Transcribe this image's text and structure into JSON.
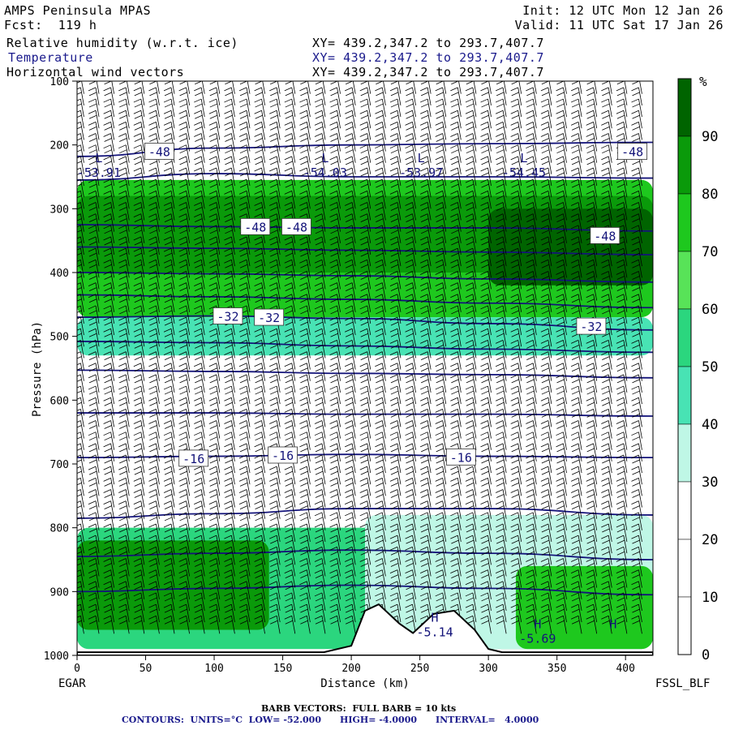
{
  "header": {
    "model": "AMPS Peninsula MPAS",
    "fcst": "Fcst:  119 h",
    "init": "Init: 12 UTC Mon 12 Jan 26",
    "valid": "Valid: 11 UTC Sat 17 Jan 26",
    "fields": [
      {
        "label": "Relative humidity (w.r.t. ice)",
        "xy": "XY= 439.2,347.2 to 293.7,407.7"
      },
      {
        "label": "Temperature",
        "xy": "XY= 439.2,347.2 to 293.7,407.7"
      },
      {
        "label": "Horizontal wind vectors",
        "xy": "XY= 439.2,347.2 to 293.7,407.7"
      }
    ]
  },
  "footer": {
    "left_station": "EGAR",
    "right_station": "FSSL_BLF",
    "barb_note": "BARB VECTORS:  FULL BARB = 10 kts",
    "contour_note": "CONTOURS:  UNITS=°C  LOW= -52.000      HIGH= -4.0000      INTERVAL=   4.0000"
  },
  "colorbar": {
    "unit_label": "%",
    "ticks": [
      "90",
      "80",
      "70",
      "60",
      "50",
      "40",
      "30",
      "20",
      "10",
      "0"
    ],
    "bands": [
      {
        "from": 90,
        "to": 100,
        "color": "#006400"
      },
      {
        "from": 80,
        "to": 90,
        "color": "#0a9a0a"
      },
      {
        "from": 70,
        "to": 80,
        "color": "#1ec81e"
      },
      {
        "from": 60,
        "to": 70,
        "color": "#58e358"
      },
      {
        "from": 50,
        "to": 60,
        "color": "#2bd67e"
      },
      {
        "from": 40,
        "to": 50,
        "color": "#48e3b4"
      },
      {
        "from": 30,
        "to": 40,
        "color": "#bff7e6"
      },
      {
        "from": 20,
        "to": 30,
        "color": "#ffffff"
      },
      {
        "from": 10,
        "to": 20,
        "color": "#ffffff"
      },
      {
        "from": 0,
        "to": 10,
        "color": "#ffffff"
      }
    ]
  },
  "chart_data": {
    "type": "heatmap",
    "title": "AMPS Peninsula MPAS",
    "xlabel": "Distance (km)",
    "ylabel": "Pressure (hPa)",
    "xlim": [
      0,
      420
    ],
    "ylim": [
      1000,
      100
    ],
    "x_ticks": [
      0,
      50,
      100,
      150,
      200,
      250,
      300,
      350,
      400
    ],
    "y_ticks": [
      100,
      200,
      300,
      400,
      500,
      600,
      700,
      800,
      900,
      1000
    ],
    "colors": {
      "contour": "#14147a",
      "barb": "#000000",
      "terrain": "#000000"
    },
    "rh_layers": [
      {
        "p_top": 255,
        "p_bot": 470,
        "rh": 70
      },
      {
        "p_top": 280,
        "p_bot": 400,
        "rh": 80
      },
      {
        "p_top": 300,
        "p_bot": 420,
        "rh": 90,
        "x_from": 300,
        "x_to": 420
      },
      {
        "p_top": 470,
        "p_bot": 530,
        "rh": 45
      },
      {
        "p_top": 800,
        "p_bot": 990,
        "rh": 55
      },
      {
        "p_top": 820,
        "p_bot": 960,
        "rh": 80,
        "x_from": 0,
        "x_to": 140
      },
      {
        "p_top": 780,
        "p_bot": 990,
        "rh": 35,
        "x_from": 210,
        "x_to": 420
      },
      {
        "p_top": 860,
        "p_bot": 990,
        "rh": 75,
        "x_from": 320,
        "x_to": 420
      }
    ],
    "temperature_contours": [
      {
        "value": -48,
        "points": [
          [
            0,
            218
          ],
          [
            100,
            205
          ],
          [
            200,
            200
          ],
          [
            300,
            198
          ],
          [
            420,
            196
          ]
        ]
      },
      {
        "value": -52,
        "points": [
          [
            0,
            255
          ],
          [
            100,
            245
          ],
          [
            200,
            250
          ],
          [
            300,
            250
          ],
          [
            420,
            252
          ]
        ]
      },
      {
        "value": -48,
        "points": [
          [
            0,
            325
          ],
          [
            100,
            328
          ],
          [
            200,
            330
          ],
          [
            300,
            330
          ],
          [
            420,
            335
          ]
        ]
      },
      {
        "value": -44,
        "points": [
          [
            0,
            360
          ],
          [
            100,
            362
          ],
          [
            200,
            365
          ],
          [
            300,
            368
          ],
          [
            420,
            372
          ]
        ]
      },
      {
        "value": -40,
        "points": [
          [
            0,
            400
          ],
          [
            100,
            402
          ],
          [
            200,
            405
          ],
          [
            300,
            410
          ],
          [
            420,
            415
          ]
        ]
      },
      {
        "value": -36,
        "points": [
          [
            0,
            435
          ],
          [
            100,
            438
          ],
          [
            200,
            442
          ],
          [
            300,
            448
          ],
          [
            420,
            455
          ]
        ]
      },
      {
        "value": -32,
        "points": [
          [
            0,
            470
          ],
          [
            100,
            468
          ],
          [
            200,
            472
          ],
          [
            300,
            480
          ],
          [
            420,
            490
          ]
        ]
      },
      {
        "value": -28,
        "points": [
          [
            0,
            508
          ],
          [
            100,
            510
          ],
          [
            200,
            515
          ],
          [
            300,
            520
          ],
          [
            420,
            525
          ]
        ]
      },
      {
        "value": -24,
        "points": [
          [
            0,
            553
          ],
          [
            100,
            555
          ],
          [
            200,
            558
          ],
          [
            300,
            560
          ],
          [
            420,
            565
          ]
        ]
      },
      {
        "value": -20,
        "points": [
          [
            0,
            620
          ],
          [
            100,
            620
          ],
          [
            200,
            622
          ],
          [
            300,
            622
          ],
          [
            420,
            625
          ]
        ]
      },
      {
        "value": -16,
        "points": [
          [
            0,
            690
          ],
          [
            100,
            688
          ],
          [
            200,
            685
          ],
          [
            300,
            688
          ],
          [
            420,
            690
          ]
        ]
      },
      {
        "value": -12,
        "points": [
          [
            0,
            785
          ],
          [
            100,
            778
          ],
          [
            200,
            770
          ],
          [
            300,
            770
          ],
          [
            420,
            780
          ]
        ]
      },
      {
        "value": -8,
        "points": [
          [
            0,
            845
          ],
          [
            100,
            840
          ],
          [
            200,
            835
          ],
          [
            300,
            840
          ],
          [
            420,
            850
          ]
        ]
      },
      {
        "value": -4,
        "points": [
          [
            0,
            900
          ],
          [
            100,
            895
          ],
          [
            200,
            890
          ],
          [
            300,
            895
          ],
          [
            420,
            905
          ]
        ]
      }
    ],
    "contour_labels": [
      {
        "text": "-48",
        "x": 60,
        "p": 210
      },
      {
        "text": "-48",
        "x": 405,
        "p": 210
      },
      {
        "text": "-48",
        "x": 130,
        "p": 328
      },
      {
        "text": "-48",
        "x": 160,
        "p": 328
      },
      {
        "text": "-48",
        "x": 385,
        "p": 342
      },
      {
        "text": "-32",
        "x": 110,
        "p": 468
      },
      {
        "text": "-32",
        "x": 140,
        "p": 470
      },
      {
        "text": "-32",
        "x": 375,
        "p": 484
      },
      {
        "text": "-16",
        "x": 85,
        "p": 691
      },
      {
        "text": "-16",
        "x": 150,
        "p": 686
      },
      {
        "text": "-16",
        "x": 280,
        "p": 689
      }
    ],
    "extrema": [
      {
        "kind": "L",
        "value": "-53.91",
        "x": 10,
        "p": 245
      },
      {
        "kind": "L",
        "value": "-54.03",
        "x": 175,
        "p": 245
      },
      {
        "kind": "L",
        "value": "-53.97",
        "x": 245,
        "p": 245
      },
      {
        "kind": "L",
        "value": "-54.45",
        "x": 320,
        "p": 245
      },
      {
        "kind": "H",
        "value": "-5.14",
        "x": 255,
        "p": 965
      },
      {
        "kind": "H",
        "value": "-5.69",
        "x": 330,
        "p": 975
      },
      {
        "kind": "H",
        "value": "",
        "x": 385,
        "p": 975
      }
    ],
    "terrain": [
      [
        0,
        995
      ],
      [
        180,
        995
      ],
      [
        200,
        985
      ],
      [
        210,
        930
      ],
      [
        220,
        920
      ],
      [
        235,
        950
      ],
      [
        245,
        965
      ],
      [
        260,
        935
      ],
      [
        275,
        930
      ],
      [
        290,
        960
      ],
      [
        300,
        990
      ],
      [
        310,
        995
      ],
      [
        420,
        995
      ]
    ]
  }
}
